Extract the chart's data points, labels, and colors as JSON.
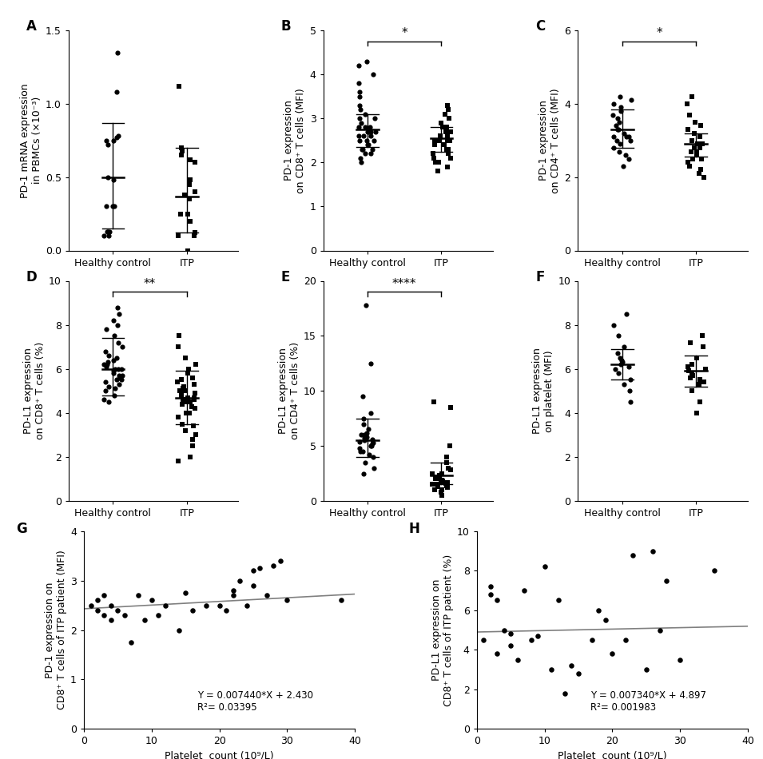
{
  "panel_A": {
    "label": "A",
    "ylabel": "PD-1 mRNA expression\nin PBMCs (×10⁻³)",
    "groups": [
      "Healthy control",
      "ITP"
    ],
    "hc_data": [
      0.13,
      0.1,
      0.1,
      0.13,
      0.13,
      0.75,
      0.77,
      0.78,
      0.75,
      0.72,
      0.5,
      0.48,
      0.3,
      0.3,
      0.3,
      1.08,
      1.35
    ],
    "itp_data": [
      0.0,
      0.1,
      0.1,
      0.12,
      0.2,
      0.25,
      0.25,
      0.35,
      0.38,
      0.4,
      0.45,
      0.48,
      0.6,
      0.62,
      0.65,
      0.68,
      0.7,
      1.12
    ],
    "hc_mean": 0.5,
    "hc_sd_lo": 0.15,
    "hc_sd_hi": 0.87,
    "itp_mean": 0.37,
    "itp_sd_lo": 0.12,
    "itp_sd_hi": 0.7,
    "ylim": [
      0,
      1.5
    ],
    "yticks": [
      0.0,
      0.5,
      1.0,
      1.5
    ],
    "yticklabels": [
      "0.0",
      "0.5",
      "1.0",
      "1.5"
    ],
    "significance": null
  },
  "panel_B": {
    "label": "B",
    "ylabel": "PD-1 expression\non CD8⁺ T cells (MFI)",
    "groups": [
      "Healthy control",
      "ITP"
    ],
    "hc_data": [
      2.0,
      2.1,
      2.2,
      2.2,
      2.3,
      2.3,
      2.3,
      2.4,
      2.4,
      2.5,
      2.5,
      2.5,
      2.6,
      2.6,
      2.6,
      2.7,
      2.7,
      2.7,
      2.7,
      2.8,
      2.8,
      2.8,
      2.9,
      3.0,
      3.0,
      3.1,
      3.2,
      3.3,
      3.5,
      3.6,
      3.8,
      4.0,
      4.2,
      4.3
    ],
    "itp_data": [
      1.8,
      1.9,
      2.0,
      2.0,
      2.1,
      2.1,
      2.2,
      2.2,
      2.2,
      2.3,
      2.3,
      2.4,
      2.4,
      2.5,
      2.5,
      2.5,
      2.5,
      2.6,
      2.6,
      2.7,
      2.7,
      2.8,
      2.8,
      2.9,
      3.0,
      3.1,
      3.2,
      3.3
    ],
    "hc_mean": 2.75,
    "hc_sd_lo": 2.35,
    "hc_sd_hi": 3.1,
    "itp_mean": 2.55,
    "itp_sd_lo": 2.25,
    "itp_sd_hi": 2.8,
    "ylim": [
      0,
      5
    ],
    "yticks": [
      0,
      1,
      2,
      3,
      4,
      5
    ],
    "yticklabels": [
      "0",
      "1",
      "2",
      "3",
      "4",
      "5"
    ],
    "significance": "*"
  },
  "panel_C": {
    "label": "C",
    "ylabel": "PD-1 expression\non CD4⁺ T cells (MFI)",
    "groups": [
      "Healthy control",
      "ITP"
    ],
    "hc_data": [
      2.3,
      2.5,
      2.6,
      2.7,
      2.8,
      2.9,
      3.0,
      3.0,
      3.1,
      3.1,
      3.1,
      3.2,
      3.3,
      3.3,
      3.4,
      3.5,
      3.6,
      3.7,
      3.8,
      3.9,
      4.0,
      4.1,
      4.2
    ],
    "itp_data": [
      2.0,
      2.1,
      2.2,
      2.3,
      2.4,
      2.5,
      2.5,
      2.6,
      2.7,
      2.7,
      2.8,
      2.8,
      2.9,
      2.9,
      3.0,
      3.0,
      3.1,
      3.2,
      3.3,
      3.4,
      3.5,
      3.7,
      4.0,
      4.2
    ],
    "hc_mean": 3.3,
    "hc_sd_lo": 2.8,
    "hc_sd_hi": 3.85,
    "itp_mean": 2.9,
    "itp_sd_lo": 2.55,
    "itp_sd_hi": 3.2,
    "ylim": [
      0,
      6
    ],
    "yticks": [
      0,
      2,
      4,
      6
    ],
    "yticklabels": [
      "0",
      "2",
      "4",
      "6"
    ],
    "significance": "*"
  },
  "panel_D": {
    "label": "D",
    "ylabel": "PD-L1 expression\non CD8⁺ T cells (%)",
    "groups": [
      "Healthy control",
      "ITP"
    ],
    "hc_data": [
      4.5,
      4.6,
      4.8,
      5.0,
      5.1,
      5.2,
      5.3,
      5.4,
      5.5,
      5.5,
      5.6,
      5.7,
      5.7,
      5.8,
      5.9,
      6.0,
      6.0,
      6.0,
      6.1,
      6.2,
      6.2,
      6.3,
      6.4,
      6.5,
      6.6,
      6.8,
      7.0,
      7.2,
      7.5,
      7.8,
      8.0,
      8.2,
      8.5,
      8.8
    ],
    "itp_data": [
      1.8,
      2.0,
      2.5,
      2.8,
      3.0,
      3.2,
      3.4,
      3.5,
      3.8,
      4.0,
      4.0,
      4.2,
      4.3,
      4.4,
      4.5,
      4.5,
      4.6,
      4.6,
      4.7,
      4.7,
      4.8,
      4.9,
      5.0,
      5.0,
      5.1,
      5.2,
      5.3,
      5.4,
      5.5,
      5.6,
      5.8,
      6.0,
      6.2,
      6.5,
      7.0,
      7.5
    ],
    "hc_mean": 6.0,
    "hc_sd_lo": 4.8,
    "hc_sd_hi": 7.4,
    "itp_mean": 4.7,
    "itp_sd_lo": 3.5,
    "itp_sd_hi": 5.9,
    "ylim": [
      0,
      10
    ],
    "yticks": [
      0,
      2,
      4,
      6,
      8,
      10
    ],
    "yticklabels": [
      "0",
      "2",
      "4",
      "6",
      "8",
      "10"
    ],
    "significance": "**"
  },
  "panel_E": {
    "label": "E",
    "ylabel": "PD-L1 expression\non CD4⁺ T cells (%)",
    "groups": [
      "Healthy control",
      "ITP"
    ],
    "hc_data": [
      2.5,
      3.0,
      3.5,
      4.0,
      4.2,
      4.5,
      4.5,
      4.8,
      5.0,
      5.0,
      5.2,
      5.3,
      5.4,
      5.5,
      5.6,
      5.7,
      5.8,
      6.0,
      6.0,
      6.2,
      6.5,
      7.0,
      7.5,
      8.0,
      9.5,
      12.5,
      17.8
    ],
    "itp_data": [
      0.5,
      0.8,
      1.0,
      1.0,
      1.2,
      1.3,
      1.4,
      1.4,
      1.5,
      1.5,
      1.6,
      1.6,
      1.7,
      1.7,
      1.8,
      1.9,
      2.0,
      2.0,
      2.0,
      2.1,
      2.2,
      2.3,
      2.5,
      2.5,
      2.8,
      3.0,
      3.5,
      4.0,
      5.0,
      8.5,
      9.0
    ],
    "hc_mean": 5.5,
    "hc_sd_lo": 4.0,
    "hc_sd_hi": 7.5,
    "itp_mean": 2.3,
    "itp_sd_lo": 1.5,
    "itp_sd_hi": 3.5,
    "ylim": [
      0,
      20
    ],
    "yticks": [
      0,
      5,
      10,
      15,
      20
    ],
    "yticklabels": [
      "0",
      "5",
      "10",
      "15",
      "20"
    ],
    "significance": "****"
  },
  "panel_F": {
    "label": "F",
    "ylabel": "PD-L1 expression\non platelet (MFI)",
    "groups": [
      "Healthy control",
      "ITP"
    ],
    "hc_data": [
      4.5,
      5.0,
      5.3,
      5.5,
      5.8,
      6.0,
      6.1,
      6.2,
      6.3,
      6.4,
      6.5,
      6.7,
      7.0,
      7.5,
      8.0,
      8.5
    ],
    "itp_data": [
      4.0,
      4.5,
      5.0,
      5.3,
      5.4,
      5.5,
      5.6,
      5.7,
      5.8,
      5.9,
      6.0,
      6.1,
      6.2,
      6.5,
      7.0,
      7.2,
      7.5
    ],
    "hc_mean": 6.2,
    "hc_sd_lo": 5.5,
    "hc_sd_hi": 6.9,
    "itp_mean": 5.9,
    "itp_sd_lo": 5.2,
    "itp_sd_hi": 6.6,
    "ylim": [
      0,
      10
    ],
    "yticks": [
      0,
      2,
      4,
      6,
      8,
      10
    ],
    "yticklabels": [
      "0",
      "2",
      "4",
      "6",
      "8",
      "10"
    ],
    "significance": null
  },
  "panel_G": {
    "label": "G",
    "ylabel": "PD-1 expression on\nCD8⁺ T cells of ITP patient (MFI)",
    "xlabel": "Platelet  count (10⁹/L)",
    "x_data": [
      1,
      2,
      2,
      3,
      3,
      4,
      4,
      5,
      6,
      7,
      8,
      9,
      10,
      11,
      12,
      14,
      15,
      16,
      18,
      20,
      21,
      22,
      22,
      23,
      24,
      25,
      25,
      26,
      27,
      28,
      29,
      30,
      38
    ],
    "y_data": [
      2.5,
      2.4,
      2.6,
      2.3,
      2.7,
      2.2,
      2.5,
      2.4,
      2.3,
      1.75,
      2.7,
      2.2,
      2.6,
      2.3,
      2.5,
      2.0,
      2.75,
      2.4,
      2.5,
      2.5,
      2.4,
      2.7,
      2.8,
      3.0,
      2.5,
      3.2,
      2.9,
      3.25,
      2.7,
      3.3,
      3.4,
      2.6,
      2.6
    ],
    "equation": "Y = 0.007440*X + 2.430",
    "r2": "R²= 0.03395",
    "slope": 0.00744,
    "intercept": 2.43,
    "xlim": [
      0,
      40
    ],
    "ylim": [
      0,
      4
    ],
    "yticks": [
      0,
      1,
      2,
      3,
      4
    ],
    "xticks": [
      0,
      10,
      20,
      30,
      40
    ]
  },
  "panel_H": {
    "label": "H",
    "ylabel": "PD-L1 expression on\nCD8⁺ T cells of ITP patient (%)",
    "xlabel": "Platelet  count (10⁹/L)",
    "x_data": [
      1,
      2,
      2,
      3,
      3,
      4,
      5,
      5,
      6,
      7,
      8,
      9,
      10,
      11,
      12,
      13,
      14,
      15,
      17,
      18,
      19,
      20,
      22,
      23,
      25,
      26,
      27,
      28,
      30,
      35
    ],
    "y_data": [
      4.5,
      6.8,
      7.2,
      3.8,
      6.5,
      5.0,
      4.2,
      4.8,
      3.5,
      7.0,
      4.5,
      4.7,
      8.2,
      3.0,
      6.5,
      1.8,
      3.2,
      2.8,
      4.5,
      6.0,
      5.5,
      3.8,
      4.5,
      8.8,
      3.0,
      9.0,
      5.0,
      7.5,
      3.5,
      8.0
    ],
    "equation": "Y = 0.007340*X + 4.897",
    "r2": "R²= 0.001983",
    "slope": 0.00734,
    "intercept": 4.897,
    "xlim": [
      0,
      40
    ],
    "ylim": [
      0,
      10
    ],
    "yticks": [
      0,
      2,
      4,
      6,
      8,
      10
    ],
    "xticks": [
      0,
      10,
      20,
      30,
      40
    ]
  },
  "bg_color": "#ffffff",
  "font_size": 9,
  "label_font_size": 12
}
